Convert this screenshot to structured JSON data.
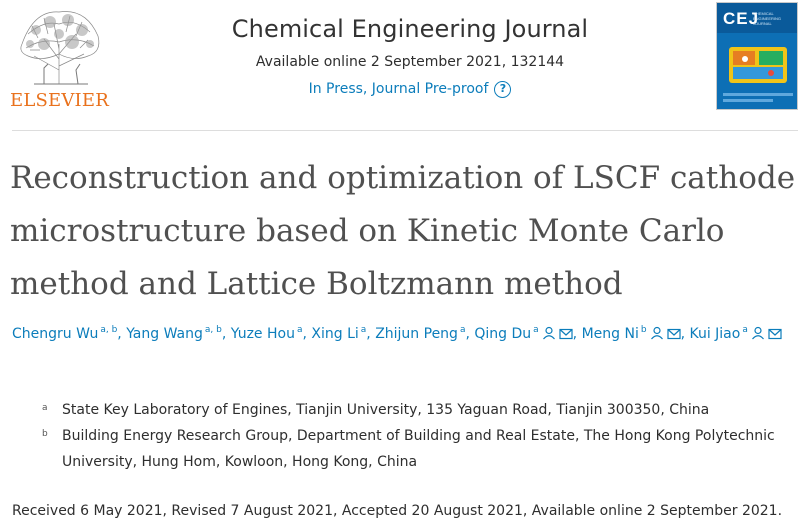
{
  "publisher": {
    "logo_text": "ELSEVIER"
  },
  "journal": {
    "title": "Chemical Engineering Journal",
    "availability": "Available online 2 September 2021, 132144",
    "status": "In Press, Journal Pre-proof",
    "help_icon": "?",
    "cover_abbrev": "CEJ",
    "cover_subtitle": "CHEMICAL ENGINEERING JOURNAL"
  },
  "article": {
    "title": "Reconstruction and optimization of LSCF cathode microstructure based on Kinetic Monte Carlo method and Lattice Boltzmann method"
  },
  "authors": [
    {
      "name": "Chengru Wu",
      "sup": "a, b",
      "icons": []
    },
    {
      "name": "Yang Wang",
      "sup": "a, b",
      "icons": []
    },
    {
      "name": "Yuze Hou",
      "sup": "a",
      "icons": []
    },
    {
      "name": "Xing Li",
      "sup": "a",
      "icons": []
    },
    {
      "name": "Zhijun Peng",
      "sup": "a",
      "icons": []
    },
    {
      "name": "Qing Du",
      "sup": "a",
      "icons": [
        "person-icon",
        "email-icon"
      ]
    },
    {
      "name": "Meng Ni",
      "sup": "b",
      "icons": [
        "person-icon",
        "email-icon"
      ]
    },
    {
      "name": "Kui Jiao",
      "sup": "a",
      "icons": [
        "person-icon",
        "email-icon"
      ]
    }
  ],
  "affiliations": [
    {
      "mark": "a",
      "text": "State Key Laboratory of Engines, Tianjin University, 135 Yaguan Road, Tianjin 300350, China"
    },
    {
      "mark": "b",
      "text": "Building Energy Research Group, Department of Building and Real Estate, The Hong Kong Polytechnic University, Hung Hom, Kowloon, Hong Kong, China"
    }
  ],
  "dates": "Received 6 May 2021, Revised 7 August 2021, Accepted 20 August 2021, Available online 2 September 2021.",
  "colors": {
    "link": "#0c7dbb",
    "elsevier_orange": "#e9711c",
    "cover_blue": "#0a64a8"
  }
}
